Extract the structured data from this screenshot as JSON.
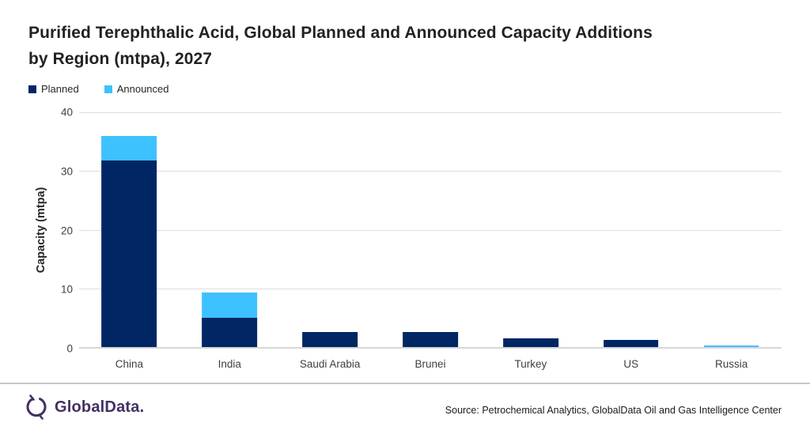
{
  "title_lines": [
    "Purified Terephthalic Acid, Global Planned and Announced Capacity Additions",
    "by Region (mtpa), 2027"
  ],
  "chart_data": {
    "type": "bar",
    "stacked": true,
    "title": "Purified Terephthalic Acid, Global Planned and Announced Capacity Additions by Region (mtpa), 2027",
    "categories": [
      "China",
      "India",
      "Saudi Arabia",
      "Brunei",
      "Turkey",
      "US",
      "Russia"
    ],
    "series": [
      {
        "name": "Planned",
        "color": "#002664",
        "values": [
          31.6,
          5.0,
          2.5,
          2.5,
          1.5,
          1.25,
          0
        ]
      },
      {
        "name": "Announced",
        "color": "#3EC1FF",
        "values": [
          4.2,
          4.3,
          0,
          0,
          0,
          0,
          0.3
        ]
      }
    ],
    "xlabel": "",
    "ylabel": "Capacity (mtpa)",
    "yticks": [
      0,
      10,
      20,
      30,
      40
    ],
    "ylim": [
      0,
      40
    ],
    "grid": true,
    "legend_position": "top-left"
  },
  "footer": {
    "logo_text": "GlobalData.",
    "source": "Source: Petrochemical Analytics, GlobalData Oil and Gas Intelligence Center"
  },
  "colors": {
    "planned": "#002664",
    "announced": "#3EC1FF",
    "gridline": "#DEDEDE",
    "axis_line": "#D6D6D6",
    "axis_text": "#404040",
    "title_text": "#222222",
    "logo_purple": "#433063",
    "divider": "#C7C7C7"
  }
}
